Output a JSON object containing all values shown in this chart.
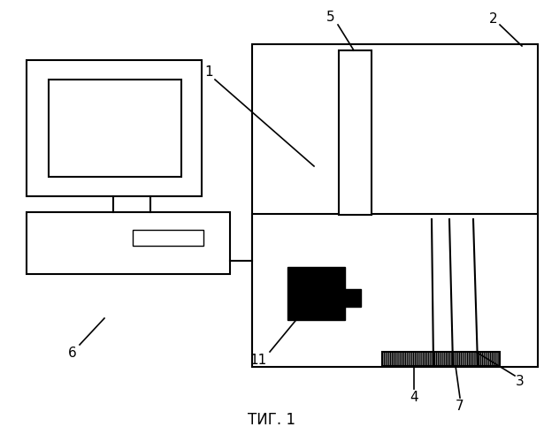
{
  "title": "ΤИГ. 1",
  "bg_color": "#ffffff",
  "line_color": "#000000",
  "lw": 1.5,
  "label_fontsize": 11
}
